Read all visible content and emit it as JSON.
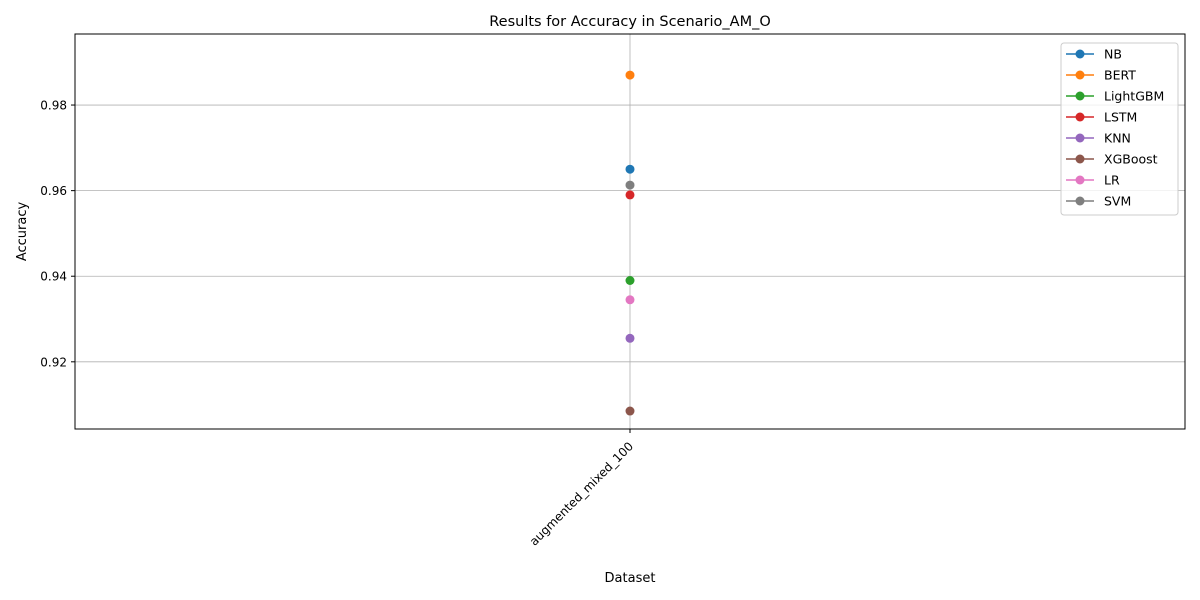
{
  "chart_data": {
    "type": "line",
    "title": "Results for Accuracy in Scenario_AM_O",
    "xlabel": "Dataset",
    "ylabel": "Accuracy",
    "categories": [
      "augmented_mixed_100"
    ],
    "ylim": [
      0.9043,
      0.9966
    ],
    "yticks": [
      0.92,
      0.94,
      0.96,
      0.98
    ],
    "ytick_labels": [
      "0.92",
      "0.94",
      "0.96",
      "0.98"
    ],
    "grid": true,
    "legend_position": "top-right",
    "series": [
      {
        "name": "NB",
        "color": "#1f77b4",
        "values": [
          0.965
        ]
      },
      {
        "name": "BERT",
        "color": "#ff7f0e",
        "values": [
          0.987
        ]
      },
      {
        "name": "LightGBM",
        "color": "#2ca02c",
        "values": [
          0.939
        ]
      },
      {
        "name": "LSTM",
        "color": "#d62728",
        "values": [
          0.959
        ]
      },
      {
        "name": "KNN",
        "color": "#9467bd",
        "values": [
          0.9255
        ]
      },
      {
        "name": "XGBoost",
        "color": "#8c564b",
        "values": [
          0.9085
        ]
      },
      {
        "name": "LR",
        "color": "#e377c2",
        "values": [
          0.9345
        ]
      },
      {
        "name": "SVM",
        "color": "#7f7f7f",
        "values": [
          0.9613
        ]
      }
    ]
  }
}
